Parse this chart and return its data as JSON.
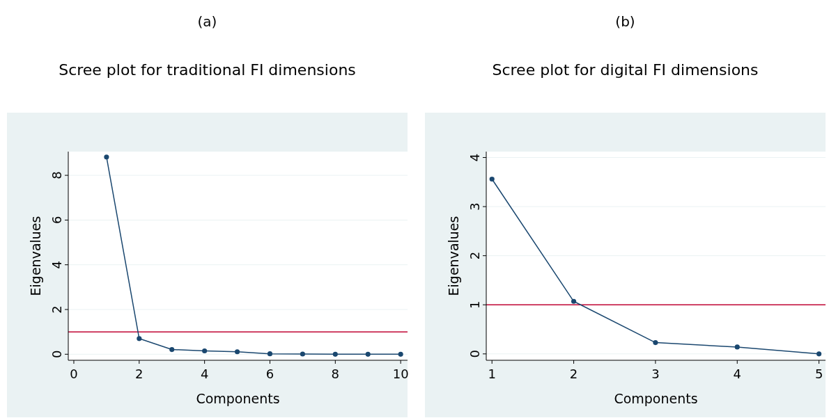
{
  "chart_data": [
    {
      "type": "line",
      "title": "(a)",
      "subtitle": "Scree plot for traditional FI dimensions",
      "xlabel": "Components",
      "ylabel": "Eigenvalues",
      "x": [
        1,
        2,
        3,
        4,
        5,
        6,
        7,
        8,
        9,
        10
      ],
      "series": [
        {
          "color": "#1a476f",
          "values": [
            8.82,
            0.7,
            0.21,
            0.15,
            0.11,
            0.02,
            0.01,
            0,
            0,
            0
          ]
        }
      ],
      "xlim": [
        -0.17,
        10.21
      ],
      "ylim": [
        -0.27,
        9.06
      ],
      "xticks": [
        0,
        2,
        4,
        6,
        8,
        10
      ],
      "yticks": [
        0,
        2,
        4,
        6,
        8
      ],
      "grid": "y",
      "marker": "circle",
      "ref_lines": [
        {
          "axis": "y",
          "value": 1,
          "color": "#c10534"
        }
      ]
    },
    {
      "type": "line",
      "title": "(b)",
      "subtitle": "Scree plot for digital FI dimensions",
      "xlabel": "Components",
      "ylabel": "Eigenvalues",
      "x": [
        1,
        2,
        3,
        4,
        5
      ],
      "series": [
        {
          "color": "#1a476f",
          "values": [
            3.56,
            1.07,
            0.23,
            0.14,
            0
          ]
        }
      ],
      "xlim": [
        0.93,
        5.08
      ],
      "ylim": [
        -0.13,
        4.12
      ],
      "xticks": [
        1,
        2,
        3,
        4,
        5
      ],
      "yticks": [
        0,
        1,
        2,
        3,
        4
      ],
      "grid": "y",
      "marker": "circle",
      "ref_lines": [
        {
          "axis": "y",
          "value": 1,
          "color": "#c10534"
        }
      ]
    }
  ]
}
